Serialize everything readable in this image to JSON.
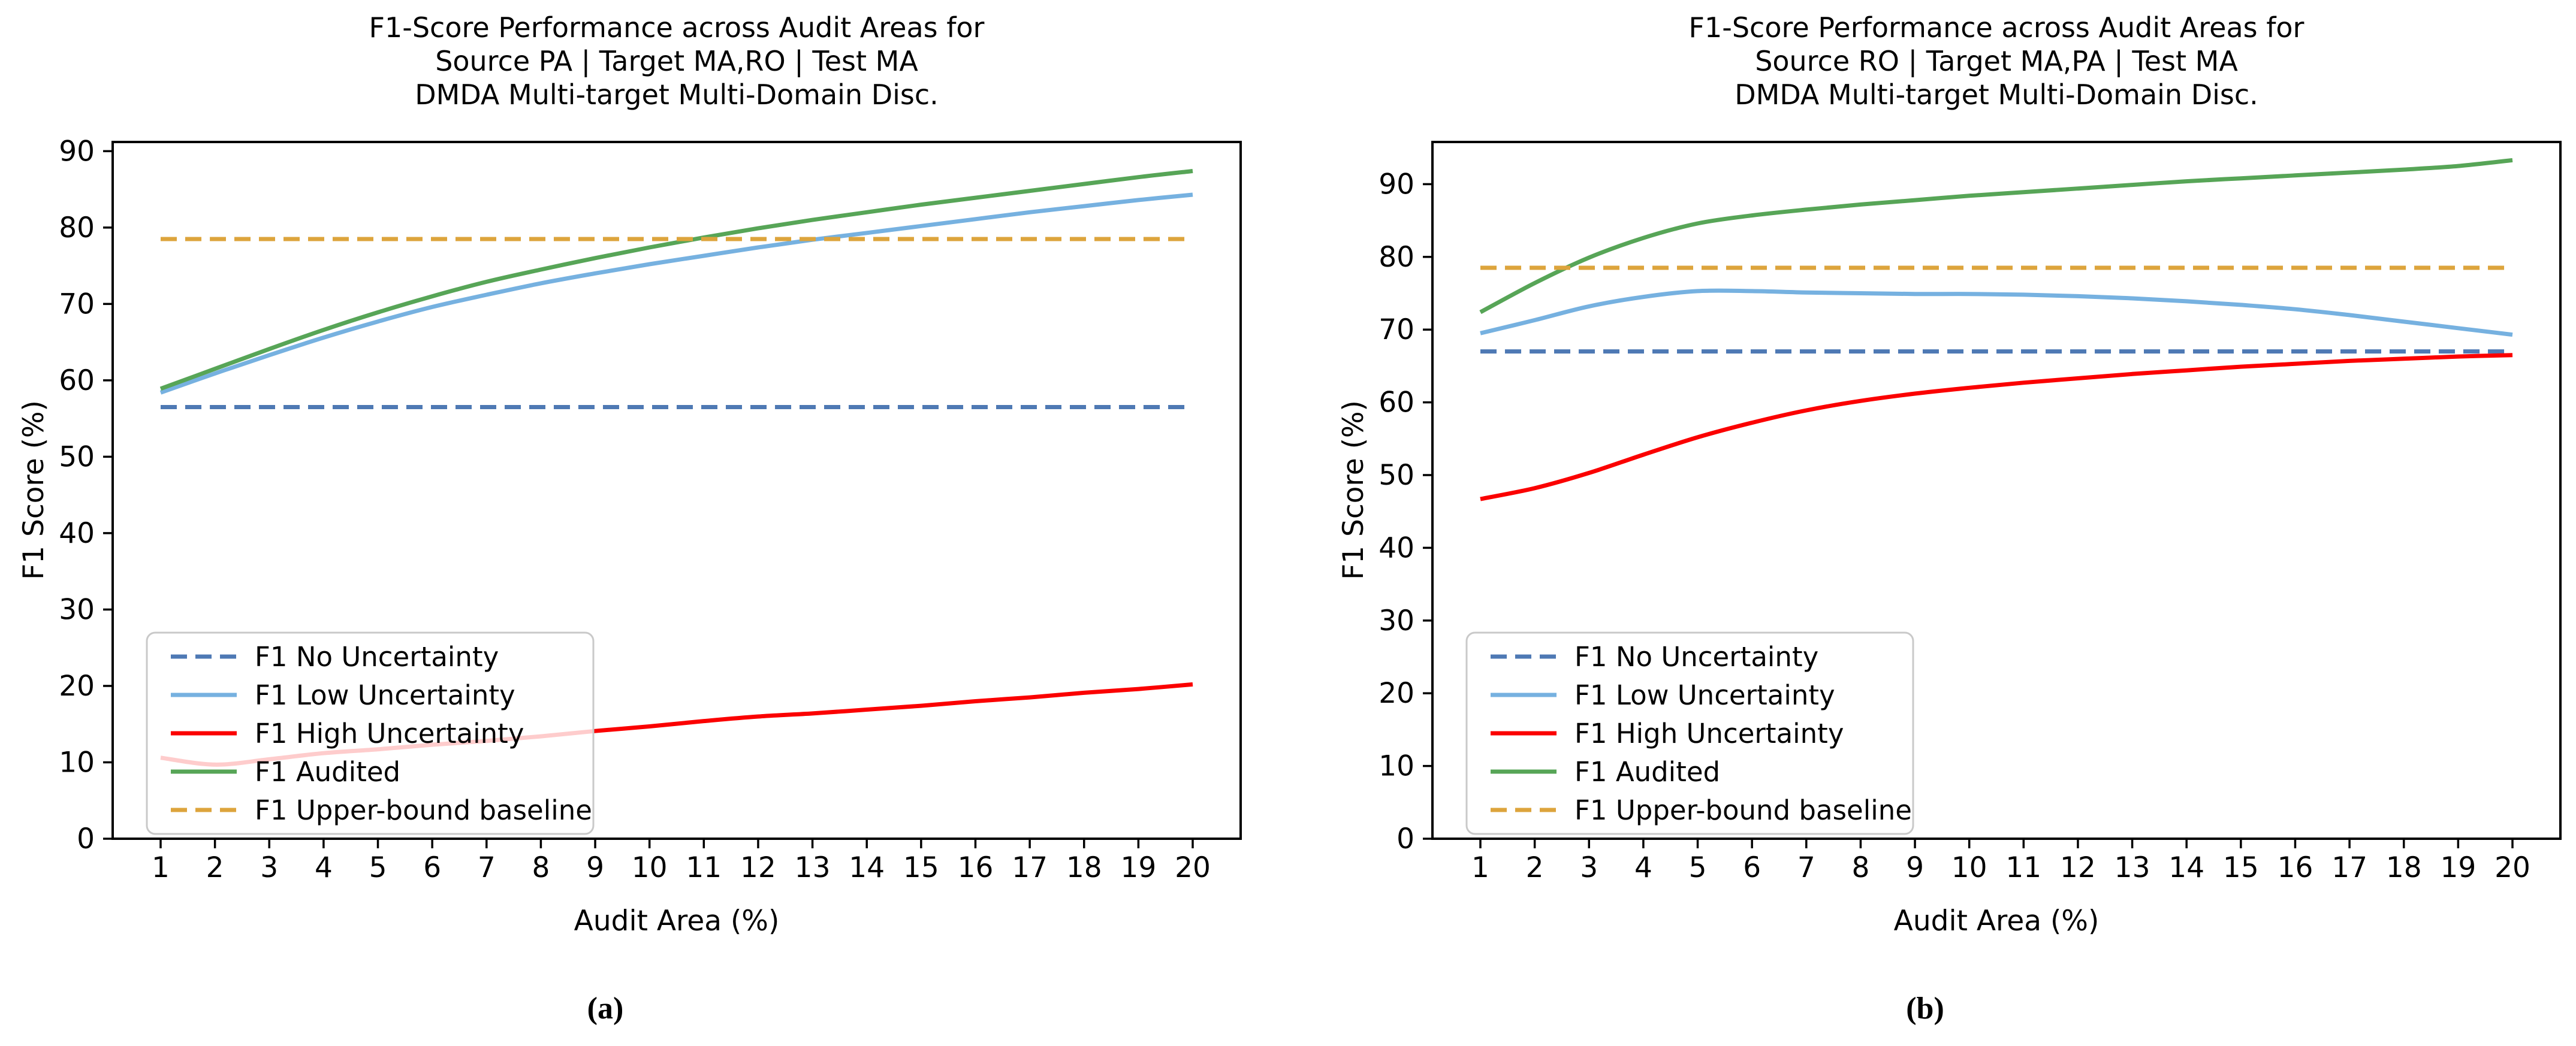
{
  "figure": {
    "background": "#ffffff",
    "text_color": "#000000"
  },
  "chart_data": [
    {
      "type": "line",
      "panel": "a",
      "caption": "(a)",
      "title_lines": [
        "F1-Score Performance across Audit Areas for",
        "Source PA | Target MA,RO | Test MA",
        "DMDA Multi-target Multi-Domain Disc."
      ],
      "xlabel": "Audit Area (%)",
      "ylabel": "F1 Score (%)",
      "x": [
        1,
        2,
        3,
        4,
        5,
        6,
        7,
        8,
        9,
        10,
        11,
        12,
        13,
        14,
        15,
        16,
        17,
        18,
        19,
        20
      ],
      "xticks": [
        1,
        2,
        3,
        4,
        5,
        6,
        7,
        8,
        9,
        10,
        11,
        12,
        13,
        14,
        15,
        16,
        17,
        18,
        19,
        20
      ],
      "yticks": [
        0,
        10,
        20,
        30,
        40,
        50,
        60,
        70,
        80,
        90
      ],
      "ylim": [
        0,
        91.2
      ],
      "grid": false,
      "legend_position": "lower left",
      "series": [
        {
          "name": "F1 No Uncertainty",
          "color": "#4e79b4",
          "dash": true,
          "constant": 56.5
        },
        {
          "name": "F1 Low Uncertainty",
          "color": "#76b1e0",
          "dash": false,
          "values": [
            58.4,
            60.9,
            63.3,
            65.6,
            67.7,
            69.6,
            71.2,
            72.7,
            74.0,
            75.2,
            76.3,
            77.4,
            78.4,
            79.3,
            80.2,
            81.1,
            82.0,
            82.8,
            83.6,
            84.3
          ]
        },
        {
          "name": "F1 High Uncertainty",
          "color": "#fb0000",
          "dash": false,
          "values": [
            10.6,
            9.7,
            10.4,
            11.2,
            11.7,
            12.3,
            12.8,
            13.4,
            14.1,
            14.7,
            15.4,
            16.0,
            16.4,
            16.9,
            17.4,
            18.0,
            18.5,
            19.1,
            19.6,
            20.2
          ]
        },
        {
          "name": "F1 Audited",
          "color": "#57a557",
          "dash": false,
          "values": [
            58.9,
            61.5,
            64.1,
            66.6,
            68.9,
            71.0,
            72.9,
            74.5,
            76.0,
            77.4,
            78.7,
            79.9,
            81.0,
            82.0,
            83.0,
            83.9,
            84.8,
            85.7,
            86.6,
            87.4
          ]
        },
        {
          "name": "F1 Upper-bound baseline",
          "color": "#dda43c",
          "dash": true,
          "constant": 78.5
        }
      ]
    },
    {
      "type": "line",
      "panel": "b",
      "caption": "(b)",
      "title_lines": [
        "F1-Score Performance across Audit Areas for",
        "Source RO | Target MA,PA | Test MA",
        "DMDA Multi-target Multi-Domain Disc."
      ],
      "xlabel": "Audit Area (%)",
      "ylabel": "F1 Score (%)",
      "x": [
        1,
        2,
        3,
        4,
        5,
        6,
        7,
        8,
        9,
        10,
        11,
        12,
        13,
        14,
        15,
        16,
        17,
        18,
        19,
        20
      ],
      "xticks": [
        1,
        2,
        3,
        4,
        5,
        6,
        7,
        8,
        9,
        10,
        11,
        12,
        13,
        14,
        15,
        16,
        17,
        18,
        19,
        20
      ],
      "yticks": [
        0,
        10,
        20,
        30,
        40,
        50,
        60,
        70,
        80,
        90
      ],
      "ylim": [
        0,
        95.8
      ],
      "grid": false,
      "legend_position": "lower left",
      "series": [
        {
          "name": "F1 No Uncertainty",
          "color": "#4e79b4",
          "dash": true,
          "constant": 67.0
        },
        {
          "name": "F1 Low Uncertainty",
          "color": "#76b1e0",
          "dash": false,
          "values": [
            69.5,
            71.3,
            73.2,
            74.5,
            75.3,
            75.3,
            75.1,
            75.0,
            74.9,
            74.9,
            74.8,
            74.6,
            74.3,
            73.9,
            73.4,
            72.8,
            72.0,
            71.1,
            70.2,
            69.3
          ]
        },
        {
          "name": "F1 High Uncertainty",
          "color": "#fb0000",
          "dash": false,
          "values": [
            46.7,
            48.2,
            50.3,
            52.8,
            55.2,
            57.2,
            58.9,
            60.2,
            61.2,
            62.0,
            62.7,
            63.3,
            63.9,
            64.4,
            64.9,
            65.3,
            65.7,
            66.0,
            66.3,
            66.5
          ]
        },
        {
          "name": "F1 Audited",
          "color": "#57a557",
          "dash": false,
          "values": [
            72.4,
            76.4,
            79.9,
            82.6,
            84.6,
            85.7,
            86.5,
            87.2,
            87.8,
            88.4,
            88.9,
            89.4,
            89.9,
            90.4,
            90.8,
            91.2,
            91.6,
            92.0,
            92.5,
            93.3
          ]
        },
        {
          "name": "F1 Upper-bound baseline",
          "color": "#dda43c",
          "dash": true,
          "constant": 78.5
        }
      ]
    }
  ]
}
